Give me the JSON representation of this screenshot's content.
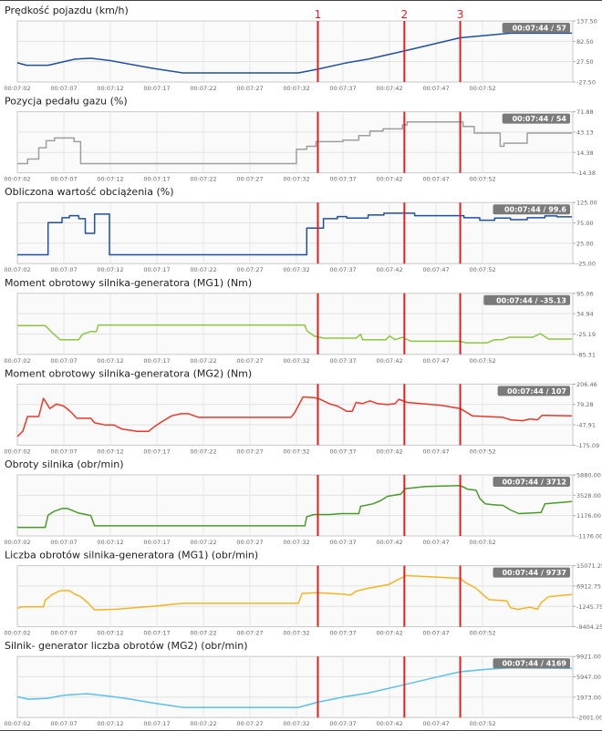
{
  "x_ticks": [
    "00:07:02",
    "00:07:07",
    "00:07:12",
    "00:07:17",
    "00:07:22",
    "00:07:27",
    "00:07:32",
    "00:07:37",
    "00:07:42",
    "00:07:47",
    "00:07:52"
  ],
  "markers": [
    {
      "label": "1",
      "t": 34.3
    },
    {
      "label": "2",
      "t": 43.6
    },
    {
      "label": "3",
      "t": 49.6
    }
  ],
  "marker_color": "#e02020",
  "chart_data": [
    {
      "type": "line",
      "title": "Prędkość pojazdu (km/h)",
      "tooltip": "00:07:44 / 57",
      "color": "#1f4fa0",
      "yticks": [
        "137.50",
        "82.50",
        "27.50",
        "-27.50"
      ],
      "ylim": [
        -27.5,
        137.5
      ],
      "xlim_seconds_after_00_07_00": [
        2,
        61.7
      ],
      "points": [
        [
          2,
          24.5
        ],
        [
          3,
          17.9
        ],
        [
          5.3,
          17.9
        ],
        [
          8.2,
          34.4
        ],
        [
          9.9,
          36.8
        ],
        [
          12,
          30.3
        ],
        [
          16.5,
          9.6
        ],
        [
          19.8,
          -2.8
        ],
        [
          32.2,
          -2.8
        ],
        [
          34.3,
          7.2
        ],
        [
          37.2,
          23.6
        ],
        [
          39.7,
          34.4
        ],
        [
          43.6,
          56.6
        ],
        [
          49.6,
          92.1
        ],
        [
          55,
          104.5
        ],
        [
          61.6,
          104.5
        ]
      ]
    },
    {
      "type": "line",
      "title": "Pozycja pedału gazu (%)",
      "tooltip": "00:07:44 / 54",
      "color": "#9e9e9e",
      "yticks": [
        "71.88",
        "43.13",
        "14.38",
        "-14.38"
      ],
      "ylim": [
        -14.38,
        71.88
      ],
      "step": true,
      "points": [
        [
          2,
          -1.4
        ],
        [
          3.1,
          5
        ],
        [
          4.3,
          21
        ],
        [
          5.1,
          31
        ],
        [
          6,
          34.8
        ],
        [
          8.1,
          29.6
        ],
        [
          8.8,
          -1.4
        ],
        [
          32,
          18.8
        ],
        [
          33.1,
          23.1
        ],
        [
          34.1,
          29.6
        ],
        [
          37,
          31.8
        ],
        [
          38.7,
          38.2
        ],
        [
          39.9,
          44.7
        ],
        [
          41.3,
          47.7
        ],
        [
          43.4,
          53.3
        ],
        [
          43.9,
          57.6
        ],
        [
          49.9,
          51.2
        ],
        [
          51.1,
          41.7
        ],
        [
          53.9,
          23.1
        ],
        [
          54.3,
          27.4
        ],
        [
          56.8,
          41.7
        ],
        [
          61.6,
          41.7
        ]
      ]
    },
    {
      "type": "line",
      "title": "Obliczona wartość obciążenia (%)",
      "tooltip": "00:07:44 / 99.6",
      "color": "#1f4fa0",
      "yticks": [
        "125.00",
        "75.00",
        "25.00",
        "-25.00"
      ],
      "ylim": [
        -25,
        125
      ],
      "step": true,
      "points": [
        [
          2,
          -3.3
        ],
        [
          5.3,
          75.5
        ],
        [
          6.8,
          87.5
        ],
        [
          7.6,
          92.8
        ],
        [
          8.6,
          85.3
        ],
        [
          9.3,
          49.3
        ],
        [
          10.3,
          96.5
        ],
        [
          11.9,
          -3.3
        ],
        [
          33.1,
          62
        ],
        [
          34.9,
          85.3
        ],
        [
          36.4,
          90.5
        ],
        [
          37.4,
          86.8
        ],
        [
          39.7,
          94.3
        ],
        [
          41.4,
          98.8
        ],
        [
          44.7,
          92.8
        ],
        [
          50,
          87.5
        ],
        [
          51.7,
          81.5
        ],
        [
          53.3,
          86.8
        ],
        [
          55,
          83
        ],
        [
          56.8,
          87.5
        ],
        [
          58.7,
          92
        ],
        [
          60,
          89.8
        ],
        [
          61.6,
          89.8
        ]
      ]
    },
    {
      "type": "line",
      "title": "Moment obrotowy silnika-generatora (MG1) (Nm)",
      "tooltip": "00:07:44 / -35.13",
      "color": "#8cc63f",
      "yticks": [
        "95.06",
        "34.94",
        "-25.19",
        "-85.31"
      ],
      "ylim": [
        -85.31,
        95.06
      ],
      "points": [
        [
          2,
          -0.6
        ],
        [
          5,
          -0.6
        ],
        [
          5.7,
          -19.5
        ],
        [
          6.6,
          -42
        ],
        [
          8.6,
          -42
        ],
        [
          9,
          -25.8
        ],
        [
          9.9,
          -17.7
        ],
        [
          10.5,
          -17.7
        ],
        [
          10.7,
          1.3
        ],
        [
          32.9,
          1.3
        ],
        [
          33.1,
          -15
        ],
        [
          33.9,
          -31
        ],
        [
          34.9,
          -37.5
        ],
        [
          38.4,
          -37.5
        ],
        [
          38.9,
          -25.8
        ],
        [
          39.1,
          -42
        ],
        [
          41.6,
          -42
        ],
        [
          42,
          -30.3
        ],
        [
          42.6,
          -42
        ],
        [
          43.4,
          -34.8
        ],
        [
          44.3,
          -46.5
        ],
        [
          49.6,
          -46.5
        ],
        [
          50.2,
          -51
        ],
        [
          52.5,
          -51
        ],
        [
          53.3,
          -42
        ],
        [
          54.1,
          -42
        ],
        [
          54.9,
          -34.8
        ],
        [
          57.4,
          -34.8
        ],
        [
          58.2,
          -24
        ],
        [
          59.1,
          -40.2
        ],
        [
          61.6,
          -40.2
        ]
      ]
    },
    {
      "type": "line",
      "title": "Moment obrotowy silnika-generatora (MG2) (Nm)",
      "tooltip": "00:07:44 / 107",
      "color": "#e8392a",
      "yticks": [
        "206.46",
        "79.28",
        "-47.91",
        "-175.09"
      ],
      "ylim": [
        -175.09,
        206.46
      ],
      "points": [
        [
          2,
          -121.7
        ],
        [
          2.6,
          -87.4
        ],
        [
          3.1,
          3.6
        ],
        [
          4.3,
          3.6
        ],
        [
          4.8,
          116.8
        ],
        [
          5.5,
          53.8
        ],
        [
          6.2,
          82.5
        ],
        [
          7,
          69
        ],
        [
          7.6,
          40.5
        ],
        [
          8.4,
          -7.2
        ],
        [
          9.9,
          -7.2
        ],
        [
          10.3,
          -35.8
        ],
        [
          11.5,
          -49.2
        ],
        [
          12.4,
          -49.2
        ],
        [
          13.2,
          -74
        ],
        [
          14.9,
          -89.2
        ],
        [
          16.1,
          -89.2
        ],
        [
          16.7,
          -60.6
        ],
        [
          17.5,
          -30.1
        ],
        [
          18.6,
          8.1
        ],
        [
          19.6,
          21.4
        ],
        [
          20.4,
          21.4
        ],
        [
          21.5,
          -1.5
        ],
        [
          31.4,
          -1.5
        ],
        [
          31.8,
          27.2
        ],
        [
          32.7,
          126.3
        ],
        [
          33.9,
          122
        ],
        [
          34.5,
          113
        ],
        [
          35.5,
          84.4
        ],
        [
          36.4,
          69.1
        ],
        [
          37.4,
          36.6
        ],
        [
          38,
          36.6
        ],
        [
          38.4,
          92
        ],
        [
          39.1,
          84.4
        ],
        [
          39.9,
          101.5
        ],
        [
          40.7,
          84.4
        ],
        [
          41.8,
          78.6
        ],
        [
          42.6,
          84.4
        ],
        [
          43,
          111.1
        ],
        [
          43.9,
          92
        ],
        [
          47.6,
          73
        ],
        [
          49.6,
          53.8
        ],
        [
          50.9,
          8.1
        ],
        [
          54.2,
          -1.5
        ],
        [
          55,
          -16.8
        ],
        [
          56.3,
          -22.5
        ],
        [
          57.1,
          -11
        ],
        [
          57.9,
          -16.8
        ],
        [
          58.4,
          11.9
        ],
        [
          61.6,
          8.1
        ]
      ]
    },
    {
      "type": "line",
      "title": "Obroty silnika (obr/min)",
      "tooltip": "00:07:44 / 3712",
      "color": "#4a9a2a",
      "yticks": [
        "5880.00",
        "3528.00",
        "1176.00",
        "-1176.00"
      ],
      "ylim": [
        -1176,
        5880
      ],
      "points": [
        [
          2,
          -188
        ],
        [
          5,
          -188
        ],
        [
          5.3,
          1223
        ],
        [
          5.9,
          1646
        ],
        [
          6.8,
          1999
        ],
        [
          7.4,
          1999
        ],
        [
          8.6,
          1470
        ],
        [
          9.9,
          1188
        ],
        [
          10.3,
          -11
        ],
        [
          32.9,
          -11
        ],
        [
          33.1,
          1047
        ],
        [
          33.9,
          1294
        ],
        [
          35.6,
          1294
        ],
        [
          36.8,
          1400
        ],
        [
          38.7,
          1400
        ],
        [
          38.9,
          2246
        ],
        [
          40.2,
          2528
        ],
        [
          41,
          2881
        ],
        [
          41.8,
          3410
        ],
        [
          43.2,
          3657
        ],
        [
          43.7,
          4292
        ],
        [
          45.9,
          4539
        ],
        [
          49.6,
          4645
        ],
        [
          50.4,
          4222
        ],
        [
          51.3,
          4116
        ],
        [
          51.7,
          3163
        ],
        [
          52.3,
          2528
        ],
        [
          53.1,
          2423
        ],
        [
          54.2,
          2352
        ],
        [
          55,
          1823
        ],
        [
          55.9,
          1400
        ],
        [
          58.3,
          1541
        ],
        [
          58.7,
          2528
        ],
        [
          61.6,
          2810
        ]
      ]
    },
    {
      "type": "line",
      "title": "Liczba obrotów silnika-generatora (MG1) (obr/min)",
      "tooltip": "00:07:44 / 9737",
      "color": "#f5b324",
      "yticks": [
        "15071.25",
        "6912.75",
        "-1245.75",
        "-9404.25"
      ],
      "ylim": [
        -9404.25,
        15071.25
      ],
      "points": [
        [
          2,
          -2050
        ],
        [
          2.4,
          -1447
        ],
        [
          4.8,
          -1447
        ],
        [
          5,
          1206
        ],
        [
          5.7,
          3376
        ],
        [
          6.6,
          5064
        ],
        [
          7.6,
          5064
        ],
        [
          8.2,
          3617
        ],
        [
          8.8,
          2652
        ],
        [
          9.5,
          482
        ],
        [
          10.3,
          -2653
        ],
        [
          12.4,
          -2412
        ],
        [
          16.5,
          -1206
        ],
        [
          19.8,
          0
        ],
        [
          32.2,
          0
        ],
        [
          32.6,
          3979
        ],
        [
          34.3,
          4220
        ],
        [
          37.2,
          3617
        ],
        [
          37.8,
          3255
        ],
        [
          38.4,
          4823
        ],
        [
          39.7,
          6029
        ],
        [
          41.9,
          7476
        ],
        [
          43,
          9646
        ],
        [
          43.8,
          11093
        ],
        [
          49.6,
          10008
        ],
        [
          50.2,
          8199
        ],
        [
          51.3,
          6029
        ],
        [
          52.1,
          3255
        ],
        [
          52.7,
          1447
        ],
        [
          54.6,
          965
        ],
        [
          55,
          -1809
        ],
        [
          55.8,
          -2412
        ],
        [
          57.1,
          -1568
        ],
        [
          57.9,
          -2412
        ],
        [
          58.3,
          241
        ],
        [
          59.1,
          2652
        ],
        [
          61.6,
          3496
        ]
      ]
    },
    {
      "type": "line",
      "title": "Silnik- generator liczba obrotów (MG2) (obr/min)",
      "tooltip": "00:07:44 / 4169",
      "color": "#5bc0e8",
      "yticks": [
        "9921.00",
        "5947.00",
        "1973.00",
        "-2001.00"
      ],
      "ylim": [
        -2001,
        9921
      ],
      "points": [
        [
          2,
          2052
        ],
        [
          3.2,
          1575
        ],
        [
          5.3,
          1754
        ],
        [
          7,
          2350
        ],
        [
          9.5,
          2648
        ],
        [
          11.5,
          2231
        ],
        [
          13.6,
          1754
        ],
        [
          16.5,
          860
        ],
        [
          19.8,
          -33
        ],
        [
          32.2,
          -33
        ],
        [
          34.3,
          980
        ],
        [
          37.2,
          2052
        ],
        [
          39.7,
          2768
        ],
        [
          43.4,
          4318
        ],
        [
          46.7,
          5748
        ],
        [
          49.6,
          6940
        ],
        [
          52.5,
          7417
        ],
        [
          55,
          7715
        ],
        [
          61.6,
          7596
        ]
      ]
    }
  ]
}
